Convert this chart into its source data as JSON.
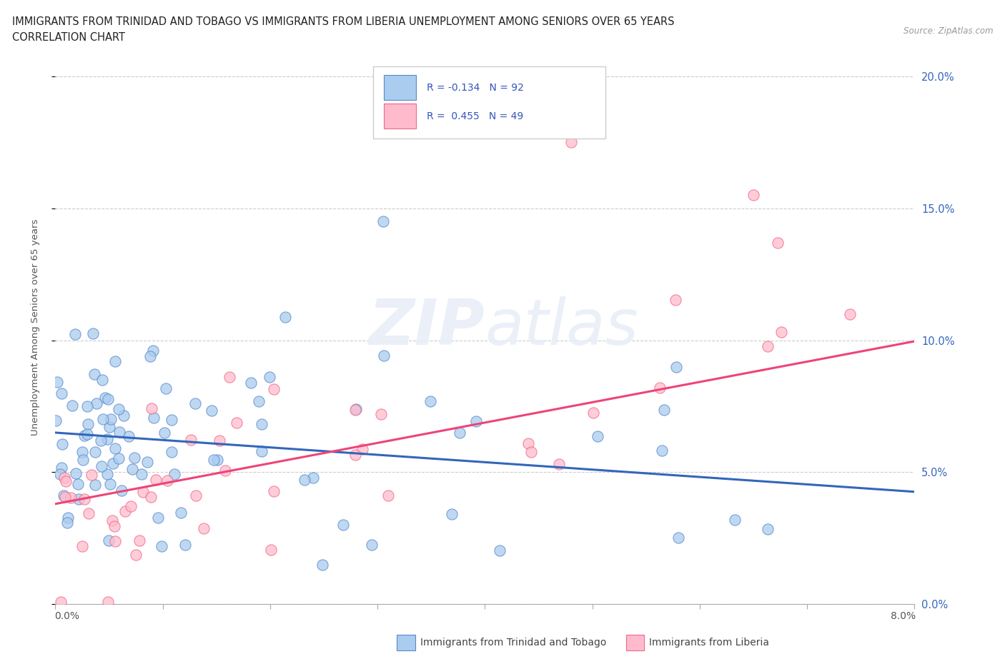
{
  "title_line1": "IMMIGRANTS FROM TRINIDAD AND TOBAGO VS IMMIGRANTS FROM LIBERIA UNEMPLOYMENT AMONG SENIORS OVER 65 YEARS",
  "title_line2": "CORRELATION CHART",
  "source_text": "Source: ZipAtlas.com",
  "ylabel": "Unemployment Among Seniors over 65 years",
  "xlim": [
    0.0,
    0.08
  ],
  "ylim": [
    0.0,
    0.21
  ],
  "trinidad_fill": "#aaccee",
  "trinidad_edge": "#5588cc",
  "liberia_fill": "#ffbbcc",
  "liberia_edge": "#ee6688",
  "trinidad_line_color": "#3366bb",
  "liberia_line_color": "#ee4477",
  "R_trinidad": -0.134,
  "N_trinidad": 92,
  "R_liberia": 0.455,
  "N_liberia": 49,
  "watermark": "ZIPatlas",
  "legend_R_color": "#3355bb",
  "legend_N_color": "#333333",
  "tt_line_intercept": 0.065,
  "tt_line_slope": -0.28,
  "lib_line_intercept": 0.038,
  "lib_line_slope": 0.77
}
